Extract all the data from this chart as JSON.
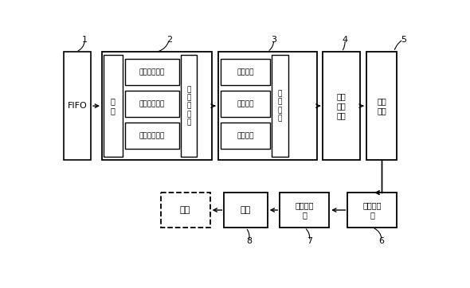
{
  "bg_color": "#ffffff",
  "labels": {
    "fifo": "FIFO",
    "sort": "排\n序",
    "slope1": "斜率倒数计算",
    "slope2": "斜率倒数计算",
    "slope3": "斜率倒数计算",
    "hline": "水\n平\n线\n生\n成",
    "cross1": "交点计算",
    "cross2": "交点计算",
    "cross3": "交点计算",
    "judge": "判\n别\n单\n元",
    "scan": "扫描\n边界\n扩展",
    "segment": "片段\n生成",
    "area_calc": "面积比计\n算",
    "area_proc": "面积比处\n理",
    "blend": "融合",
    "framebuf": "帧存"
  },
  "ref_nums": [
    "1",
    "2",
    "3",
    "4",
    "5",
    "6",
    "7",
    "8"
  ]
}
